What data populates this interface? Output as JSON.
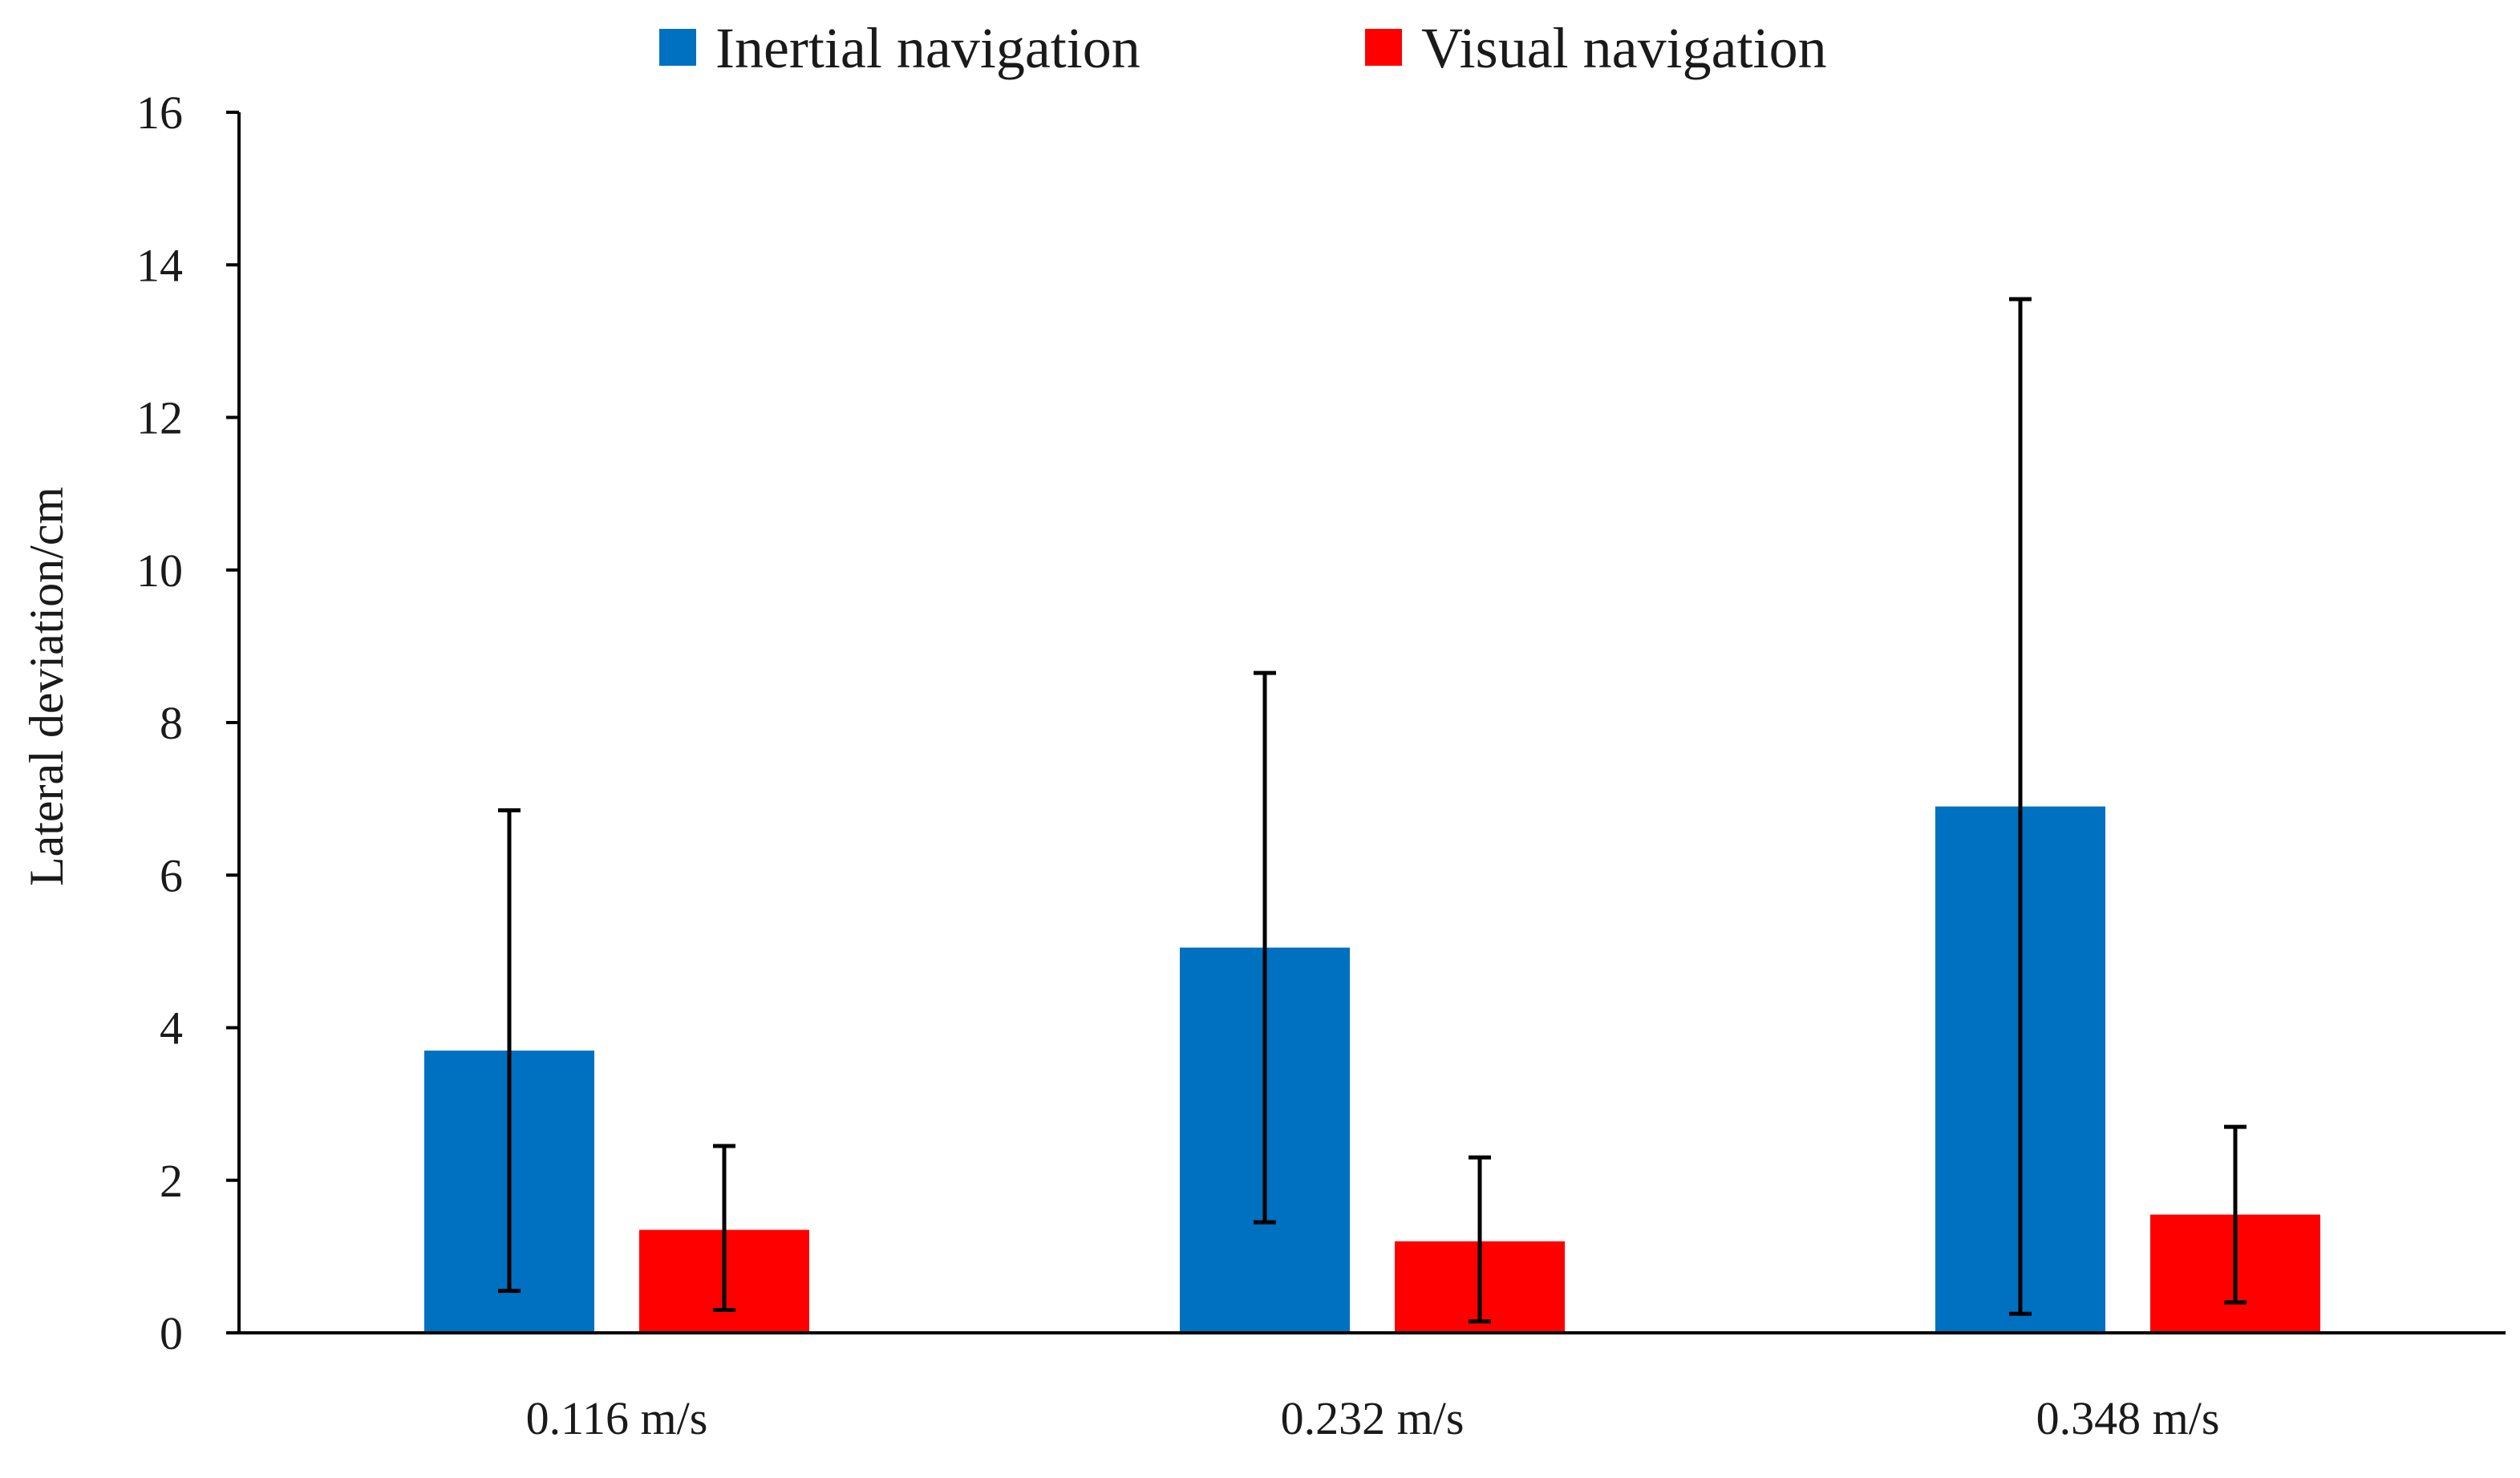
{
  "chart_data": {
    "type": "bar",
    "title": "",
    "xlabel": "",
    "ylabel": "Lateral deviation/cm",
    "ylim": [
      0,
      16
    ],
    "yticks": [
      0,
      2,
      4,
      6,
      8,
      10,
      12,
      14,
      16
    ],
    "yticks_text": [
      "0",
      "2",
      "4",
      "6",
      "8",
      "10",
      "12",
      "14",
      "16"
    ],
    "categories": [
      "0.116 m/s",
      "0.232 m/s",
      "0.348 m/s"
    ],
    "legend_position": "top-center",
    "grid": false,
    "series": [
      {
        "name": "Inertial navigation",
        "color": "#0070C0",
        "values": [
          3.7,
          5.05,
          6.9
        ],
        "error_low": [
          0.55,
          1.45,
          0.25
        ],
        "error_high": [
          6.85,
          8.65,
          13.55
        ]
      },
      {
        "name": "Visual navigation",
        "color": "#FF0000",
        "values": [
          1.35,
          1.2,
          1.55
        ],
        "error_low": [
          0.3,
          0.15,
          0.4
        ],
        "error_high": [
          2.45,
          2.3,
          2.7
        ]
      }
    ]
  }
}
